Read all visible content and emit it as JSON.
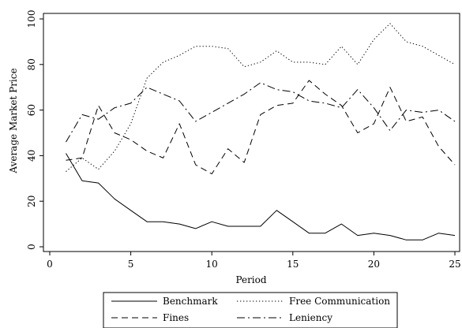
{
  "chart_data": {
    "type": "line",
    "title": "",
    "xlabel": "Period",
    "ylabel": "Average Market Price",
    "xlim": [
      0,
      25
    ],
    "ylim": [
      0,
      100
    ],
    "xticks": [
      0,
      5,
      10,
      15,
      20,
      25
    ],
    "yticks": [
      0,
      20,
      40,
      60,
      80,
      100
    ],
    "grid": false,
    "legend_position": "bottom",
    "x": [
      1,
      2,
      3,
      4,
      5,
      6,
      7,
      8,
      9,
      10,
      11,
      12,
      13,
      14,
      15,
      16,
      17,
      18,
      19,
      20,
      21,
      22,
      23,
      24,
      25
    ],
    "series": [
      {
        "name": "Benchmark",
        "dash": "solid",
        "values": [
          41,
          29,
          28,
          21,
          16,
          11,
          11,
          10,
          8,
          11,
          9,
          9,
          9,
          16,
          11,
          6,
          6,
          10,
          5,
          6,
          5,
          3,
          3,
          6,
          5
        ]
      },
      {
        "name": "Free Communication",
        "dash": "dotted",
        "values": [
          33,
          39,
          34,
          42,
          54,
          74,
          81,
          84,
          88,
          88,
          87,
          79,
          81,
          86,
          81,
          81,
          80,
          88,
          80,
          91,
          98,
          90,
          88,
          84,
          80
        ]
      },
      {
        "name": "Fines",
        "dash": "dashed",
        "values": [
          38,
          39,
          62,
          50,
          47,
          42,
          39,
          54,
          36,
          32,
          43,
          37,
          58,
          62,
          63,
          73,
          67,
          62,
          50,
          54,
          70,
          55,
          57,
          44,
          36
        ]
      },
      {
        "name": "Leniency",
        "dash": "dashdot",
        "values": [
          46,
          58,
          56,
          61,
          63,
          70,
          67,
          64,
          55,
          59,
          63,
          67,
          72,
          69,
          68,
          64,
          63,
          61,
          69,
          61,
          51,
          60,
          59,
          60,
          55
        ]
      }
    ]
  }
}
